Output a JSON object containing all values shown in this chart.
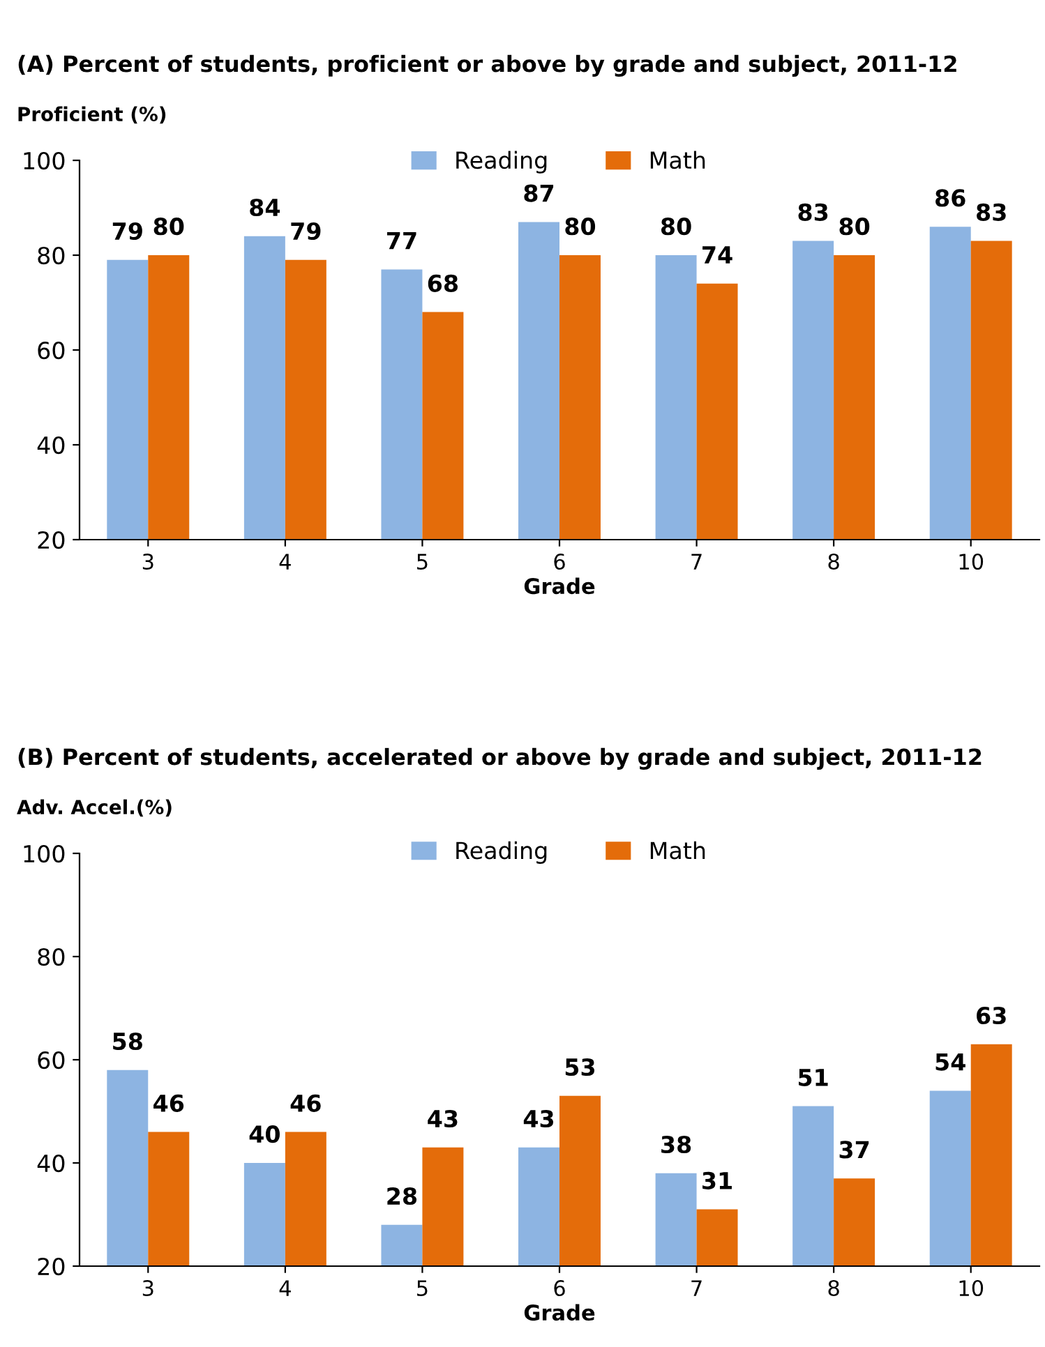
{
  "chart_data": [
    {
      "type": "bar",
      "title": "(A) Percent of students, proficient or above by grade and subject, 2011-12",
      "ylabel": "Proficient (%)",
      "xlabel": "Grade",
      "categories": [
        "3",
        "4",
        "5",
        "6",
        "7",
        "8",
        "10"
      ],
      "series": [
        {
          "name": "Reading",
          "color": "#8db4e2",
          "values": [
            79,
            84,
            77,
            87,
            80,
            83,
            86
          ]
        },
        {
          "name": "Math",
          "color": "#e46c0a",
          "values": [
            80,
            79,
            68,
            80,
            74,
            80,
            83
          ]
        }
      ],
      "ylim": [
        20,
        100
      ],
      "yticks": [
        20,
        40,
        60,
        80,
        100
      ],
      "grid": false,
      "legend": "top",
      "data_labels": true
    },
    {
      "type": "bar",
      "title": "(B) Percent of students, accelerated or above by grade and subject, 2011-12",
      "ylabel": "Adv. Accel.(%)",
      "xlabel": "Grade",
      "categories": [
        "3",
        "4",
        "5",
        "6",
        "7",
        "8",
        "10"
      ],
      "series": [
        {
          "name": "Reading",
          "color": "#8db4e2",
          "values": [
            58,
            40,
            28,
            43,
            38,
            51,
            54
          ]
        },
        {
          "name": "Math",
          "color": "#e46c0a",
          "values": [
            46,
            46,
            43,
            53,
            31,
            37,
            63
          ]
        }
      ],
      "ylim": [
        20,
        100
      ],
      "yticks": [
        20,
        40,
        60,
        80,
        100
      ],
      "grid": false,
      "legend": "top",
      "data_labels": true
    }
  ]
}
